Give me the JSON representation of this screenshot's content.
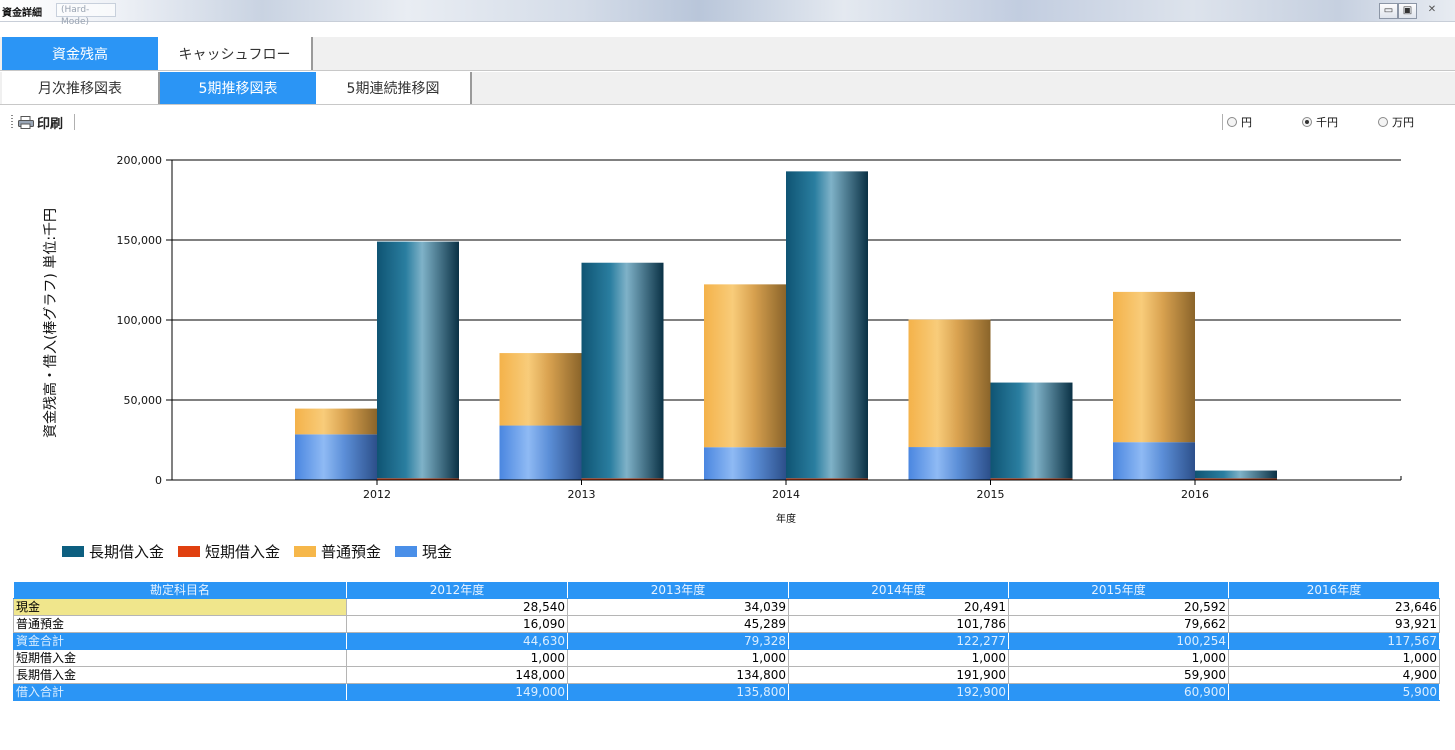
{
  "window": {
    "title": "資金詳細",
    "title_tab": "(Hard-Mode)"
  },
  "tabs_top": [
    {
      "label": "資金残高"
    },
    {
      "label": "キャッシュフロー"
    }
  ],
  "tabs_sub": [
    {
      "label": "月次推移図表"
    },
    {
      "label": "5期推移図表"
    },
    {
      "label": "5期連続推移図"
    }
  ],
  "toolbar": {
    "print_label": "印刷"
  },
  "units": [
    {
      "label": "円",
      "selected": false
    },
    {
      "label": "千円",
      "selected": true
    },
    {
      "label": "万円",
      "selected": false
    }
  ],
  "colors": {
    "accent": "#2b95f5",
    "long_term": "#0d5f80",
    "short_term": "#e04010",
    "deposit": "#f6b74a",
    "cash": "#4a8fe8"
  },
  "chart_data": {
    "type": "bar",
    "categories": [
      "2012",
      "2013",
      "2014",
      "2015",
      "2016"
    ],
    "stacks": [
      {
        "stack": "資金",
        "series": [
          {
            "name": "現金",
            "values": [
              28540,
              34039,
              20491,
              20592,
              23646
            ]
          },
          {
            "name": "普通預金",
            "values": [
              16090,
              45289,
              101786,
              79662,
              93921
            ]
          }
        ]
      },
      {
        "stack": "借入",
        "series": [
          {
            "name": "短期借入金",
            "values": [
              1000,
              1000,
              1000,
              1000,
              1000
            ]
          },
          {
            "name": "長期借入金",
            "values": [
              148000,
              134800,
              191900,
              59900,
              4900
            ]
          }
        ]
      }
    ],
    "xlabel": "年度",
    "ylabel": "資金残高・借入(棒グラフ) 単位:千円",
    "ylim": [
      0,
      200000
    ],
    "yticks": [
      "0",
      "50,000",
      "100,000",
      "150,000",
      "200,000"
    ],
    "grid": true,
    "legend": [
      "長期借入金",
      "短期借入金",
      "普通預金",
      "現金"
    ],
    "legend_position": "bottom-left"
  },
  "table": {
    "headers": [
      "勘定科目名",
      "2012年度",
      "2013年度",
      "2014年度",
      "2015年度",
      "2016年度"
    ],
    "rows": [
      {
        "name": "現金",
        "values": [
          "28,540",
          "34,039",
          "20,491",
          "20,592",
          "23,646"
        ],
        "type": "selected"
      },
      {
        "name": "普通預金",
        "values": [
          "16,090",
          "45,289",
          "101,786",
          "79,662",
          "93,921"
        ],
        "type": "normal"
      },
      {
        "name": "資金合計",
        "values": [
          "44,630",
          "79,328",
          "122,277",
          "100,254",
          "117,567"
        ],
        "type": "total"
      },
      {
        "name": "短期借入金",
        "values": [
          "1,000",
          "1,000",
          "1,000",
          "1,000",
          "1,000"
        ],
        "type": "normal"
      },
      {
        "name": "長期借入金",
        "values": [
          "148,000",
          "134,800",
          "191,900",
          "59,900",
          "4,900"
        ],
        "type": "normal"
      },
      {
        "name": "借入合計",
        "values": [
          "149,000",
          "135,800",
          "192,900",
          "60,900",
          "5,900"
        ],
        "type": "total"
      }
    ]
  }
}
